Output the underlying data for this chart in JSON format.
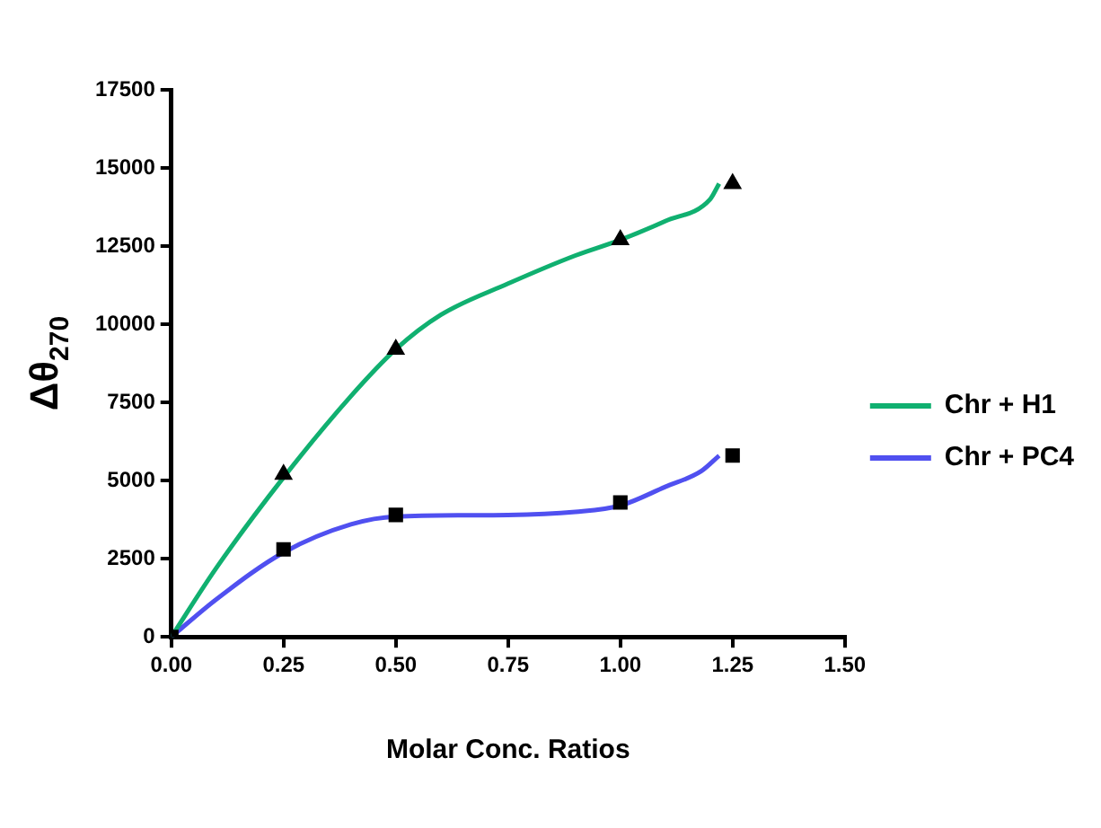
{
  "chart_data": {
    "type": "line",
    "xlabel": "Molar Conc. Ratios",
    "ylabel": "Δθ$_{270}$",
    "xlim": [
      0,
      1.5
    ],
    "xticks": [
      {
        "value": 0,
        "label": "0.00"
      },
      {
        "value": 0.25,
        "label": "0.25"
      },
      {
        "value": 0.5,
        "label": "0.50"
      },
      {
        "value": 0.75,
        "label": "0.75"
      },
      {
        "value": 1,
        "label": "1.00"
      },
      {
        "value": 1.25,
        "label": "1.25"
      },
      {
        "value": 1.5,
        "label": "1.50"
      }
    ],
    "ylim": [
      0,
      17500
    ],
    "yticks": [
      0,
      2500,
      5000,
      7500,
      10000,
      12500,
      15000,
      17500
    ],
    "grid": false,
    "legend": "right",
    "series": [
      {
        "type": "scatter",
        "marker": "triangle",
        "color": "#000000",
        "x": [
          0.25,
          0.5,
          1,
          1.25
        ],
        "values": [
          5200,
          9200,
          12700,
          14500
        ]
      },
      {
        "type": "scatter",
        "marker": "square",
        "color": "#000000",
        "x": [
          0,
          0.25,
          0.5,
          1,
          1.25
        ],
        "values": [
          0,
          2800,
          3900,
          4300,
          5800
        ]
      },
      {
        "name": "Chr + H1",
        "color": "#10b070",
        "marker": "none",
        "x": [
          0,
          0.1,
          0.25,
          0.4,
          0.5,
          0.6,
          0.75,
          0.9,
          1,
          1.1,
          1.2,
          1.22
        ],
        "values": [
          0,
          2200,
          5100,
          7700,
          9200,
          10300,
          11300,
          12200,
          12700,
          13300,
          14000,
          14500
        ]
      },
      {
        "name": "Chr + PC4",
        "color": "#5050f0",
        "marker": "none",
        "x": [
          0,
          0.1,
          0.25,
          0.4,
          0.5,
          0.75,
          0.9,
          1,
          1.1,
          1.18,
          1.22
        ],
        "values": [
          0,
          1200,
          2700,
          3600,
          3850,
          3900,
          4000,
          4200,
          4800,
          5300,
          5800
        ]
      }
    ]
  }
}
